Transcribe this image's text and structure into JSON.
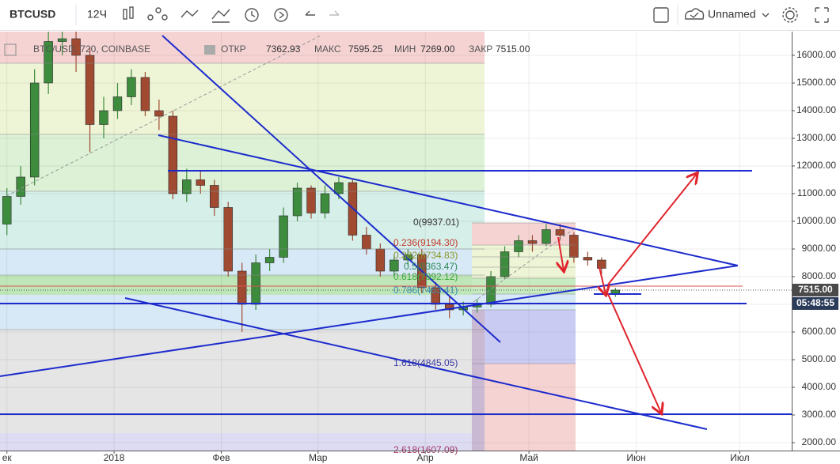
{
  "toolbar": {
    "symbol": "BTCUSD",
    "interval": "12Ч",
    "layout_name": "Unnamed"
  },
  "legend": {
    "title": "BTC/USD, 720, COINBASE",
    "open_label": "ОТКР",
    "open": "7362.93",
    "high_label": "МАКС",
    "high": "7595.25",
    "low_label": "МИН",
    "low": "7269.00",
    "close_label": "ЗАКР",
    "close": "7515.00"
  },
  "annotations": {
    "fib_0": "0(9937.01)",
    "fib_0236": "0.236(9194.30)",
    "fib_0382": "0.382(8734.83)",
    "fib_05": "0.5(8363.47)",
    "fib_0618": "0.618(7992.12)",
    "fib_0786": "0.786(7463.41)",
    "fib_1618": "1.618(4845.05)",
    "fib_2618": "2.618(1607.09)"
  },
  "price_tag": "7515.00",
  "countdown": "05:48:55",
  "chart_data": {
    "type": "candlestick",
    "x": [
      0,
      4,
      8,
      12,
      16,
      20,
      24,
      28,
      32,
      36,
      40,
      44,
      48,
      52,
      56,
      60,
      64,
      68,
      72,
      76,
      80,
      84,
      88,
      92,
      96,
      100,
      104,
      108,
      112,
      116,
      120,
      124,
      128,
      132,
      136,
      140,
      144,
      148,
      152,
      156,
      160,
      164,
      168,
      172,
      176
    ],
    "open": [
      9900,
      10900,
      11600,
      15000,
      16500,
      16600,
      16000,
      13500,
      14000,
      14500,
      15200,
      14000,
      13800,
      11000,
      11500,
      11300,
      10500,
      8200,
      7000,
      8500,
      8700,
      10200,
      11200,
      10300,
      11000,
      11400,
      9500,
      9000,
      8200,
      8600,
      8800,
      7600,
      7000,
      6800,
      6900,
      7000,
      8000,
      8900,
      9300,
      9200,
      9700,
      9500,
      8700,
      8600,
      7362.93
    ],
    "high": [
      11200,
      12000,
      15500,
      17000,
      17200,
      16900,
      16300,
      14500,
      15000,
      15500,
      15400,
      14400,
      14000,
      11900,
      11800,
      11500,
      10700,
      8500,
      8800,
      9000,
      10500,
      11400,
      11300,
      11300,
      11600,
      11500,
      9800,
      9200,
      8800,
      9000,
      9000,
      7800,
      7300,
      7100,
      7200,
      8200,
      9100,
      9500,
      9500,
      9900,
      9900,
      9600,
      8900,
      8700,
      7595.25
    ],
    "low": [
      9500,
      10600,
      11300,
      14600,
      16000,
      15400,
      12500,
      13000,
      13700,
      14200,
      13800,
      13300,
      10800,
      10700,
      11000,
      10200,
      8000,
      6000,
      6800,
      8200,
      8500,
      10000,
      10100,
      10100,
      10800,
      9300,
      8800,
      8000,
      8000,
      8400,
      7400,
      6800,
      6500,
      6600,
      6700,
      6900,
      7900,
      8700,
      8900,
      9100,
      9300,
      8500,
      8400,
      8100,
      7269
    ],
    "close": [
      10900,
      11600,
      15000,
      16500,
      16600,
      16000,
      13500,
      14000,
      14500,
      15200,
      14000,
      13800,
      11000,
      11500,
      11300,
      10500,
      8200,
      7000,
      8500,
      8700,
      10200,
      11200,
      10300,
      11000,
      11400,
      9500,
      9000,
      8200,
      8600,
      8800,
      7600,
      7000,
      6800,
      6900,
      7000,
      8000,
      8900,
      9300,
      9200,
      9700,
      9500,
      8700,
      8600,
      8300,
      7515
    ],
    "up_color": "#3d8b3d",
    "down_color": "#a04a32",
    "xlim": [
      -2,
      227
    ],
    "xticks": [
      {
        "value": 0,
        "label": "ек"
      },
      {
        "value": 31,
        "label": "2018"
      },
      {
        "value": 62,
        "label": "Фев"
      },
      {
        "value": 90,
        "label": "Мар"
      },
      {
        "value": 121,
        "label": "Апр"
      },
      {
        "value": 151,
        "label": "Май"
      },
      {
        "value": 182,
        "label": "Июн"
      },
      {
        "value": 212,
        "label": "Июл"
      }
    ],
    "ylim": [
      1714,
      16857
    ],
    "yticks": [
      {
        "value": 2000,
        "label": "2000.00"
      },
      {
        "value": 3000,
        "label": "3000.00"
      },
      {
        "value": 4000,
        "label": "4000.00"
      },
      {
        "value": 5000,
        "label": "5000.00"
      },
      {
        "value": 6000,
        "label": "6000.00"
      },
      {
        "value": 7000,
        "label": "7000.00"
      },
      {
        "value": 8000,
        "label": "8000.00"
      },
      {
        "value": 9000,
        "label": "9000.00"
      },
      {
        "value": 10000,
        "label": "10000.00"
      },
      {
        "value": 11000,
        "label": "11000.00"
      },
      {
        "value": 12000,
        "label": "12000.00"
      },
      {
        "value": 13000,
        "label": "13000.00"
      },
      {
        "value": 14000,
        "label": "14000.00"
      },
      {
        "value": 15000,
        "label": "15000.00"
      },
      {
        "value": 16000,
        "label": "16000.00"
      }
    ],
    "grid": true
  }
}
